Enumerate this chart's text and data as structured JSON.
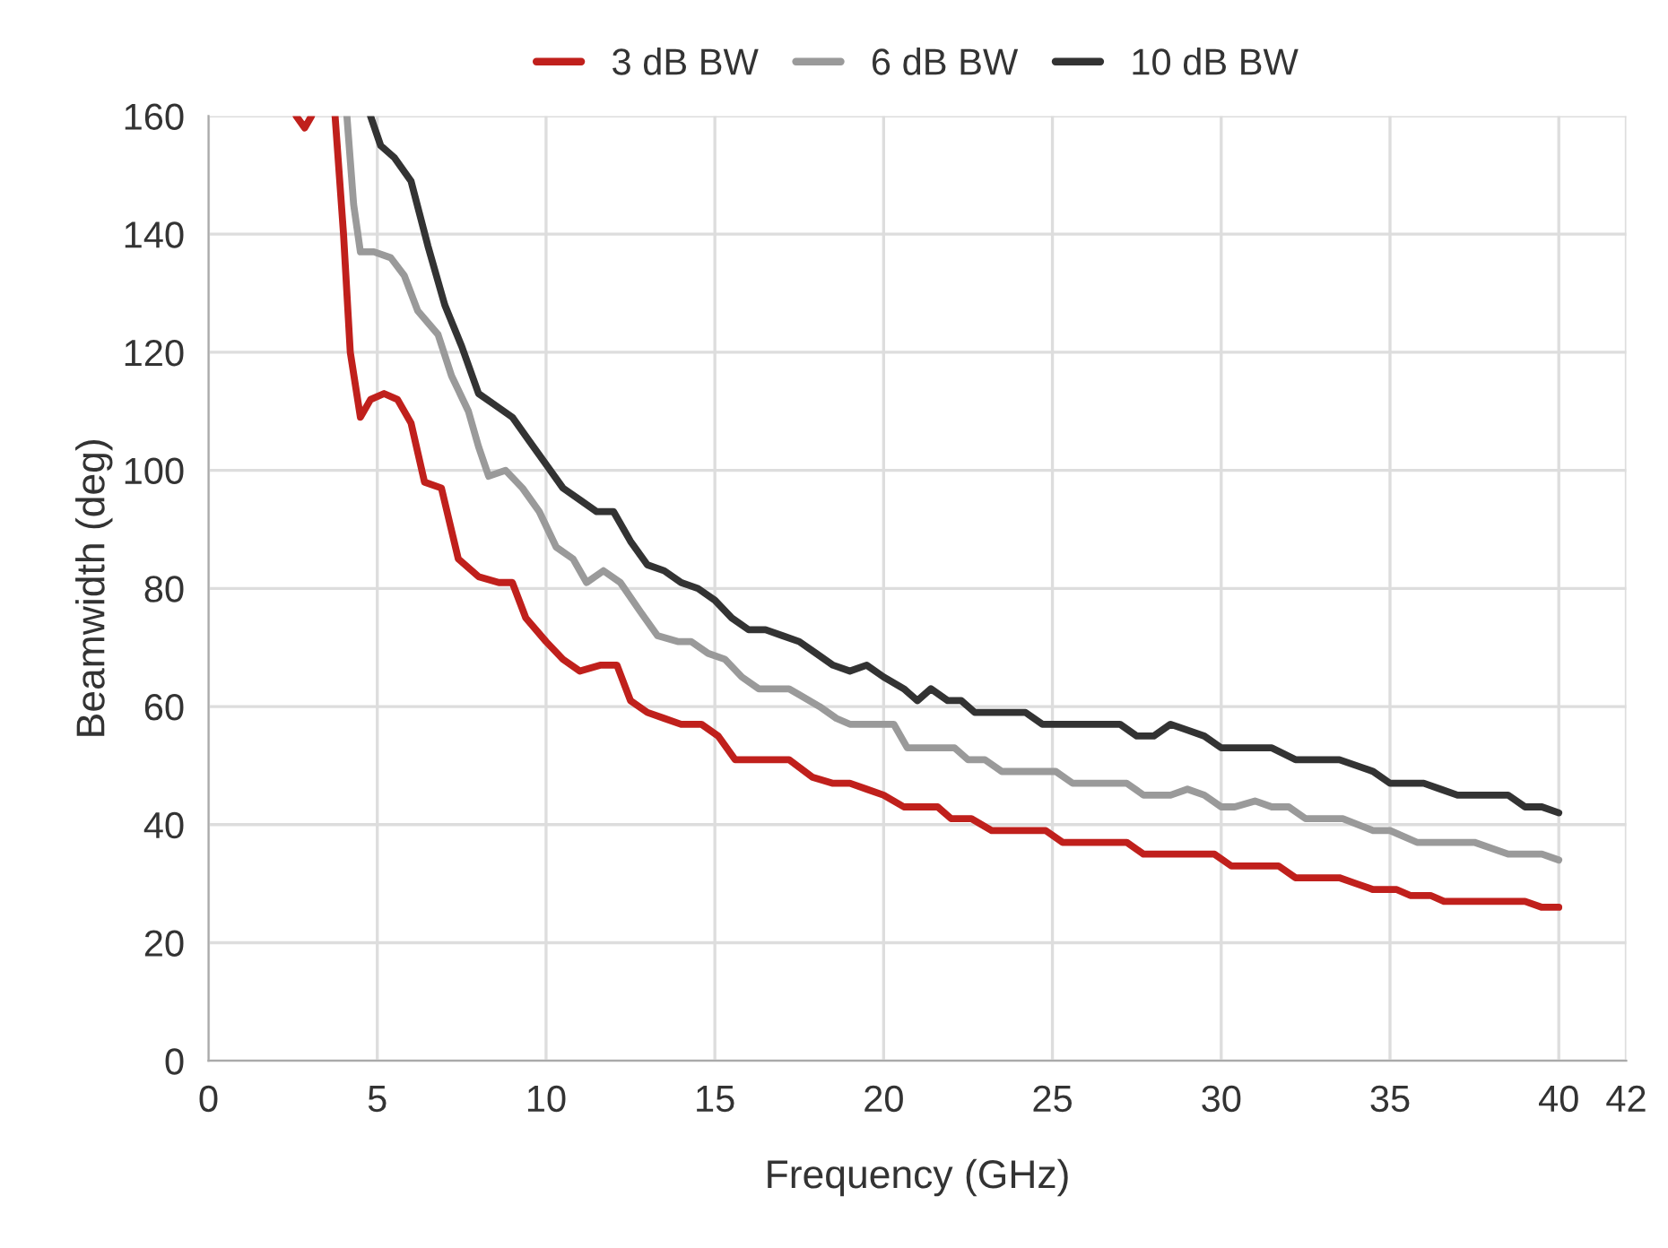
{
  "chart_data": {
    "type": "line",
    "xlabel": "Frequency (GHz)",
    "ylabel": "Beamwidth (deg)",
    "xlim": [
      0,
      42
    ],
    "xticks": [
      0,
      5,
      10,
      15,
      20,
      25,
      30,
      35,
      40,
      42
    ],
    "ylim": [
      0,
      160
    ],
    "yticks": [
      0,
      20,
      40,
      60,
      80,
      100,
      120,
      140,
      160
    ],
    "grid": true,
    "legend": "top",
    "marker": "none",
    "line_style": "solid",
    "series": [
      {
        "name": "3 dB BW",
        "color": "#c0201c",
        "x": [
          2.6,
          2.85,
          3.05,
          3.4,
          3.75,
          4.0,
          4.2,
          4.5,
          4.8,
          5.2,
          5.6,
          6.0,
          6.4,
          6.9,
          7.4,
          8.0,
          8.6,
          9.0,
          9.4,
          10,
          10.5,
          11,
          11.6,
          12.1,
          12.5,
          13,
          13.5,
          14,
          14.6,
          15.1,
          15.6,
          16,
          16.6,
          17.2,
          17.9,
          18.5,
          19,
          19.5,
          20,
          20.6,
          21.2,
          21.6,
          22,
          22.6,
          23.2,
          24,
          24.8,
          25.3,
          26,
          26.6,
          27.2,
          27.7,
          28.5,
          29.2,
          29.8,
          30.3,
          31,
          31.7,
          32.2,
          33,
          33.5,
          34,
          34.5,
          35.2,
          35.6,
          36.2,
          36.6,
          37.5,
          38.5,
          39,
          39.5,
          40
        ],
        "values": [
          160,
          158,
          160,
          null,
          160,
          140,
          120,
          109,
          112,
          113,
          112,
          108,
          98,
          97,
          85,
          82,
          81,
          81,
          75,
          71,
          68,
          66,
          67,
          67,
          61,
          59,
          58,
          57,
          57,
          55,
          51,
          51,
          51,
          51,
          48,
          47,
          47,
          46,
          45,
          43,
          43,
          43,
          41,
          41,
          39,
          39,
          39,
          37,
          37,
          37,
          37,
          35,
          35,
          35,
          35,
          33,
          33,
          33,
          31,
          31,
          31,
          30,
          29,
          29,
          28,
          28,
          27,
          27,
          27,
          27,
          26,
          26
        ]
      },
      {
        "name": "6 dB BW",
        "color": "#9a9a9a",
        "x": [
          4.1,
          4.3,
          4.5,
          4.9,
          5.4,
          5.8,
          6.2,
          6.8,
          7.2,
          7.7,
          8.0,
          8.3,
          8.8,
          9.3,
          9.8,
          10.3,
          10.8,
          11.2,
          11.7,
          12.2,
          12.8,
          13.3,
          13.9,
          14.3,
          14.8,
          15.3,
          15.8,
          16.3,
          17.2,
          17.5,
          18.1,
          18.6,
          19,
          19.8,
          20.3,
          20.7,
          21.3,
          22.1,
          22.5,
          23,
          23.5,
          24.5,
          25.1,
          25.6,
          26.5,
          27.2,
          27.7,
          28.5,
          29,
          29.5,
          30,
          30.4,
          31,
          31.5,
          32,
          32.5,
          33.2,
          33.6,
          34.5,
          35,
          35.8,
          36.5,
          37.5,
          38.5,
          39,
          39.5,
          40
        ],
        "values": [
          160,
          145,
          137,
          137,
          136,
          133,
          127,
          123,
          116,
          110,
          104,
          99,
          100,
          97,
          93,
          87,
          85,
          81,
          83,
          81,
          76,
          72,
          71,
          71,
          69,
          68,
          65,
          63,
          63,
          62,
          60,
          58,
          57,
          57,
          57,
          53,
          53,
          53,
          51,
          51,
          49,
          49,
          49,
          47,
          47,
          47,
          45,
          45,
          46,
          45,
          43,
          43,
          44,
          43,
          43,
          41,
          41,
          41,
          39,
          39,
          37,
          37,
          37,
          35,
          35,
          35,
          34
        ]
      },
      {
        "name": "10 dB BW",
        "color": "#333333",
        "x": [
          4.8,
          5.1,
          5.5,
          6.0,
          6.5,
          7.0,
          7.5,
          8.0,
          8.5,
          9.0,
          9.5,
          10,
          10.5,
          11,
          11.5,
          12,
          12.5,
          13,
          13.5,
          14,
          14.5,
          15,
          15.5,
          16,
          16.5,
          17,
          17.5,
          18,
          18.5,
          19,
          19.5,
          20,
          20.6,
          21,
          21.4,
          21.9,
          22.3,
          22.7,
          23.5,
          24.2,
          24.7,
          25.5,
          26.5,
          27,
          27.5,
          28,
          28.5,
          29,
          29.5,
          30,
          31,
          31.5,
          32.2,
          33,
          33.5,
          34,
          34.5,
          35,
          36,
          36.5,
          37,
          38,
          38.5,
          39,
          39.5,
          40
        ],
        "values": [
          160,
          155,
          153,
          149,
          138,
          128,
          121,
          113,
          111,
          109,
          105,
          101,
          97,
          95,
          93,
          93,
          88,
          84,
          83,
          81,
          80,
          78,
          75,
          73,
          73,
          72,
          71,
          69,
          67,
          66,
          67,
          65,
          63,
          61,
          63,
          61,
          61,
          59,
          59,
          59,
          57,
          57,
          57,
          57,
          55,
          55,
          57,
          56,
          55,
          53,
          53,
          53,
          51,
          51,
          51,
          50,
          49,
          47,
          47,
          46,
          45,
          45,
          45,
          43,
          43,
          42
        ]
      }
    ]
  }
}
